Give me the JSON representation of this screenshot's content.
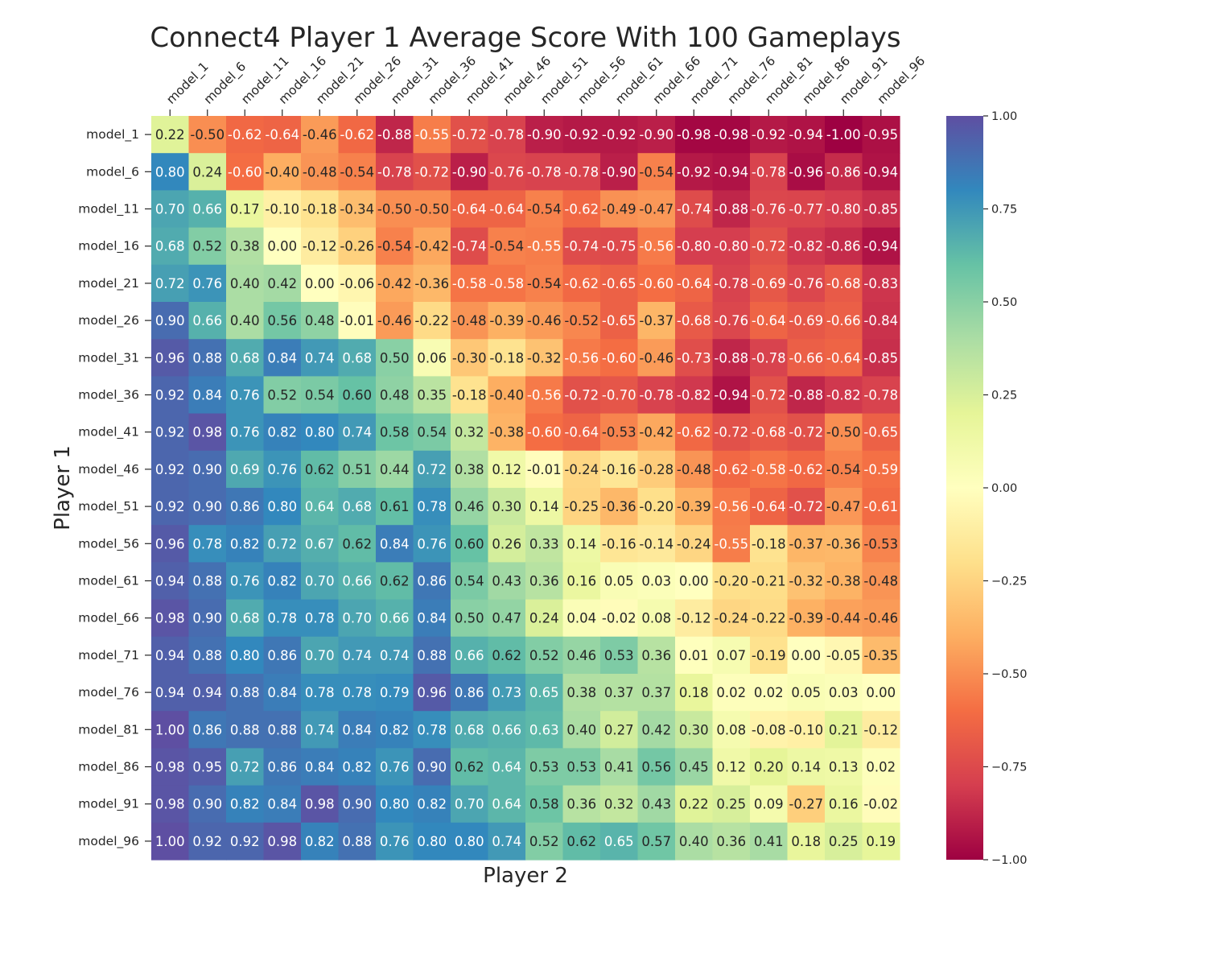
{
  "chart_data": {
    "type": "heatmap",
    "title": "Connect4 Player 1 Average Score With 100 Gameplays",
    "xlabel": "Player 2",
    "ylabel": "Player 1",
    "x_categories": [
      "model_1",
      "model_6",
      "model_11",
      "model_16",
      "model_21",
      "model_26",
      "model_31",
      "model_36",
      "model_41",
      "model_46",
      "model_51",
      "model_56",
      "model_61",
      "model_66",
      "model_71",
      "model_76",
      "model_81",
      "model_86",
      "model_91",
      "model_96"
    ],
    "y_categories": [
      "model_1",
      "model_6",
      "model_11",
      "model_16",
      "model_21",
      "model_26",
      "model_31",
      "model_36",
      "model_41",
      "model_46",
      "model_51",
      "model_56",
      "model_61",
      "model_66",
      "model_71",
      "model_76",
      "model_81",
      "model_86",
      "model_91",
      "model_96"
    ],
    "values": [
      [
        0.22,
        -0.5,
        -0.62,
        -0.64,
        -0.46,
        -0.62,
        -0.88,
        -0.55,
        -0.72,
        -0.78,
        -0.9,
        -0.92,
        -0.92,
        -0.9,
        -0.98,
        -0.98,
        -0.92,
        -0.94,
        -1.0,
        -0.95
      ],
      [
        0.8,
        0.24,
        -0.6,
        -0.4,
        -0.48,
        -0.54,
        -0.78,
        -0.72,
        -0.9,
        -0.76,
        -0.78,
        -0.78,
        -0.9,
        -0.54,
        -0.92,
        -0.94,
        -0.78,
        -0.96,
        -0.86,
        -0.94
      ],
      [
        0.7,
        0.66,
        0.17,
        -0.1,
        -0.18,
        -0.34,
        -0.5,
        -0.5,
        -0.64,
        -0.64,
        -0.54,
        -0.62,
        -0.49,
        -0.47,
        -0.74,
        -0.88,
        -0.76,
        -0.77,
        -0.8,
        -0.85
      ],
      [
        0.68,
        0.52,
        0.38,
        0.0,
        -0.12,
        -0.26,
        -0.54,
        -0.42,
        -0.74,
        -0.54,
        -0.55,
        -0.74,
        -0.75,
        -0.56,
        -0.8,
        -0.8,
        -0.72,
        -0.82,
        -0.86,
        -0.94
      ],
      [
        0.72,
        0.76,
        0.4,
        0.42,
        0.0,
        -0.06,
        -0.42,
        -0.36,
        -0.58,
        -0.58,
        -0.54,
        -0.62,
        -0.65,
        -0.6,
        -0.64,
        -0.78,
        -0.69,
        -0.76,
        -0.68,
        -0.83
      ],
      [
        0.9,
        0.66,
        0.4,
        0.56,
        0.48,
        -0.01,
        -0.46,
        -0.22,
        -0.48,
        -0.39,
        -0.46,
        -0.52,
        -0.65,
        -0.37,
        -0.68,
        -0.76,
        -0.64,
        -0.69,
        -0.66,
        -0.84
      ],
      [
        0.96,
        0.88,
        0.68,
        0.84,
        0.74,
        0.68,
        0.5,
        0.06,
        -0.3,
        -0.18,
        -0.32,
        -0.56,
        -0.6,
        -0.46,
        -0.73,
        -0.88,
        -0.78,
        -0.66,
        -0.64,
        -0.85
      ],
      [
        0.92,
        0.84,
        0.76,
        0.52,
        0.54,
        0.6,
        0.48,
        0.35,
        -0.18,
        -0.4,
        -0.56,
        -0.72,
        -0.7,
        -0.78,
        -0.82,
        -0.94,
        -0.72,
        -0.88,
        -0.82,
        -0.78
      ],
      [
        0.92,
        0.98,
        0.76,
        0.82,
        0.8,
        0.74,
        0.58,
        0.54,
        0.32,
        -0.38,
        -0.6,
        -0.64,
        -0.53,
        -0.42,
        -0.62,
        -0.72,
        -0.68,
        -0.72,
        -0.5,
        -0.65
      ],
      [
        0.92,
        0.9,
        0.69,
        0.76,
        0.62,
        0.51,
        0.44,
        0.72,
        0.38,
        0.12,
        -0.01,
        -0.24,
        -0.16,
        -0.28,
        -0.48,
        -0.62,
        -0.58,
        -0.62,
        -0.54,
        -0.59
      ],
      [
        0.92,
        0.9,
        0.86,
        0.8,
        0.64,
        0.68,
        0.61,
        0.78,
        0.46,
        0.3,
        0.14,
        -0.25,
        -0.36,
        -0.2,
        -0.39,
        -0.56,
        -0.64,
        -0.72,
        -0.47,
        -0.61
      ],
      [
        0.96,
        0.78,
        0.82,
        0.72,
        0.67,
        0.62,
        0.84,
        0.76,
        0.6,
        0.26,
        0.33,
        0.14,
        -0.16,
        -0.14,
        -0.24,
        -0.55,
        -0.18,
        -0.37,
        -0.36,
        -0.53
      ],
      [
        0.94,
        0.88,
        0.76,
        0.82,
        0.7,
        0.66,
        0.62,
        0.86,
        0.54,
        0.43,
        0.36,
        0.16,
        0.05,
        0.03,
        0.0,
        -0.2,
        -0.21,
        -0.32,
        -0.38,
        -0.48
      ],
      [
        0.98,
        0.9,
        0.68,
        0.78,
        0.78,
        0.7,
        0.66,
        0.84,
        0.5,
        0.47,
        0.24,
        0.04,
        -0.02,
        0.08,
        -0.12,
        -0.24,
        -0.22,
        -0.39,
        -0.44,
        -0.46
      ],
      [
        0.94,
        0.88,
        0.8,
        0.86,
        0.7,
        0.74,
        0.74,
        0.88,
        0.66,
        0.62,
        0.52,
        0.46,
        0.53,
        0.36,
        0.01,
        0.07,
        -0.19,
        0.0,
        -0.05,
        -0.35
      ],
      [
        0.94,
        0.94,
        0.88,
        0.84,
        0.78,
        0.78,
        0.79,
        0.96,
        0.86,
        0.73,
        0.65,
        0.38,
        0.37,
        0.37,
        0.18,
        0.02,
        0.02,
        0.05,
        0.03,
        0.0
      ],
      [
        1.0,
        0.86,
        0.88,
        0.88,
        0.74,
        0.84,
        0.82,
        0.78,
        0.68,
        0.66,
        0.63,
        0.4,
        0.27,
        0.42,
        0.3,
        0.08,
        -0.08,
        -0.1,
        0.21,
        -0.12
      ],
      [
        0.98,
        0.95,
        0.72,
        0.86,
        0.84,
        0.82,
        0.76,
        0.9,
        0.62,
        0.64,
        0.53,
        0.53,
        0.41,
        0.56,
        0.45,
        0.12,
        0.2,
        0.14,
        0.13,
        0.02
      ],
      [
        0.98,
        0.9,
        0.82,
        0.84,
        0.98,
        0.9,
        0.8,
        0.82,
        0.7,
        0.64,
        0.58,
        0.36,
        0.32,
        0.43,
        0.22,
        0.25,
        0.09,
        -0.27,
        0.16,
        -0.02
      ],
      [
        1.0,
        0.92,
        0.92,
        0.98,
        0.82,
        0.88,
        0.76,
        0.8,
        0.8,
        0.74,
        0.52,
        0.62,
        0.65,
        0.57,
        0.4,
        0.36,
        0.41,
        0.18,
        0.25,
        0.19
      ]
    ],
    "colormap": "Spectral",
    "colorbar": {
      "vmin": -1.0,
      "vmax": 1.0,
      "ticks": [
        "−1.00",
        "−0.75",
        "−0.50",
        "−0.25",
        "0.00",
        "0.25",
        "0.50",
        "0.75",
        "1.00"
      ]
    },
    "x_ticks_position": "top",
    "grid": false
  }
}
